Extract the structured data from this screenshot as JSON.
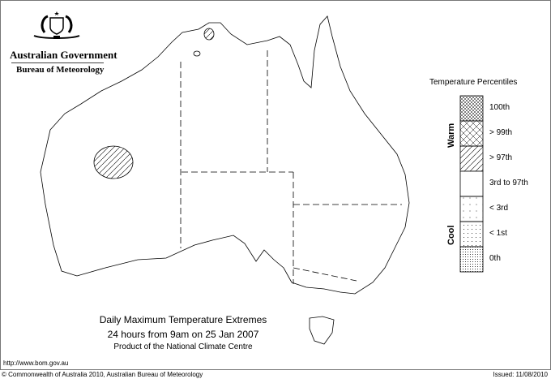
{
  "header": {
    "gov_name": "Australian Government",
    "bureau_name": "Bureau of Meteorology",
    "logo": "commonwealth-coat-of-arms"
  },
  "map": {
    "title": "Daily Maximum Temperature Extremes",
    "subtitle": "24 hours from 9am on 25 Jan 2007",
    "product": "Product of the National Climate Centre"
  },
  "legend": {
    "title": "Temperature Percentiles",
    "warm_label": "Warm",
    "cool_label": "Cool",
    "items": [
      {
        "label": "100th",
        "pattern": "fine-crosshatch"
      },
      {
        "label": "> 99th",
        "pattern": "crosshatch"
      },
      {
        "label": "> 97th",
        "pattern": "diagonal"
      },
      {
        "label": "3rd to 97th",
        "pattern": "none"
      },
      {
        "label": "< 3rd",
        "pattern": "sparse-dots"
      },
      {
        "label": "< 1st",
        "pattern": "dots"
      },
      {
        "label": "0th",
        "pattern": "dense-dots"
      }
    ]
  },
  "footer": {
    "url": "http://www.bom.gov.au",
    "copyright": "© Commonwealth of Australia 2010, Australian Bureau of Meteorology",
    "issued": "Issued: 11/08/2010"
  }
}
